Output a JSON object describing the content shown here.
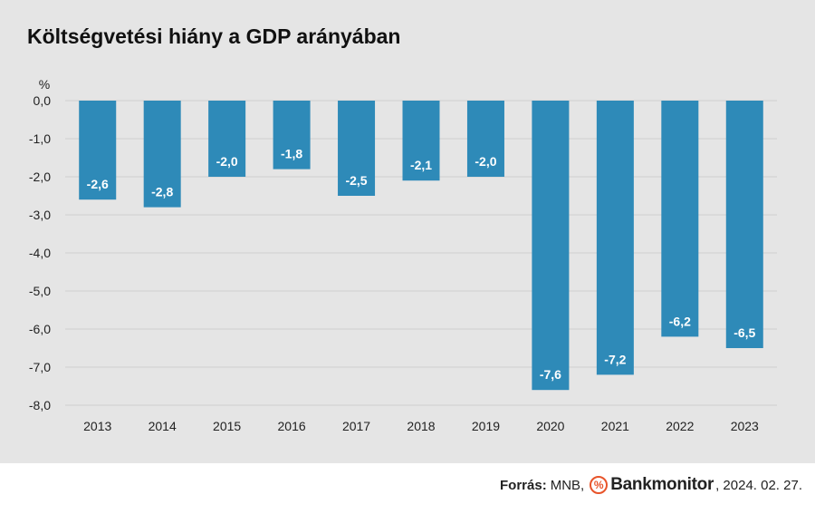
{
  "title": "Költségvetési hiány a GDP arányában",
  "source": {
    "label": "Forrás:",
    "text": "MNB,",
    "logo_icon": "percent-icon",
    "logo_symbol": "%",
    "logo_text": "Bankmonitor",
    "date": ", 2024. 02. 27."
  },
  "chart_data": {
    "type": "bar",
    "title": "Költségvetési hiány a GDP arányában",
    "ylabel": "%",
    "xlabel": "",
    "categories": [
      "2013",
      "2014",
      "2015",
      "2016",
      "2017",
      "2018",
      "2019",
      "2020",
      "2021",
      "2022",
      "2023"
    ],
    "values": [
      -2.6,
      -2.8,
      -2.0,
      -1.8,
      -2.5,
      -2.1,
      -2.0,
      -7.6,
      -7.2,
      -6.2,
      -6.5
    ],
    "value_labels": [
      "-2,6",
      "-2,8",
      "-2,0",
      "-1,8",
      "-2,5",
      "-2,1",
      "-2,0",
      "-7,6",
      "-7,2",
      "-6,2",
      "-6,5"
    ],
    "yticks": [
      0,
      -1,
      -2,
      -3,
      -4,
      -5,
      -6,
      -7,
      -8
    ],
    "ytick_labels": [
      "0,0",
      "-1,0",
      "-2,0",
      "-3,0",
      "-4,0",
      "-5,0",
      "-6,0",
      "-7,0",
      "-8,0"
    ],
    "ylim": [
      -8,
      0
    ],
    "grid": true,
    "legend": "none",
    "bar_color": "#2e8ab8",
    "label_color": "#ffffff"
  }
}
